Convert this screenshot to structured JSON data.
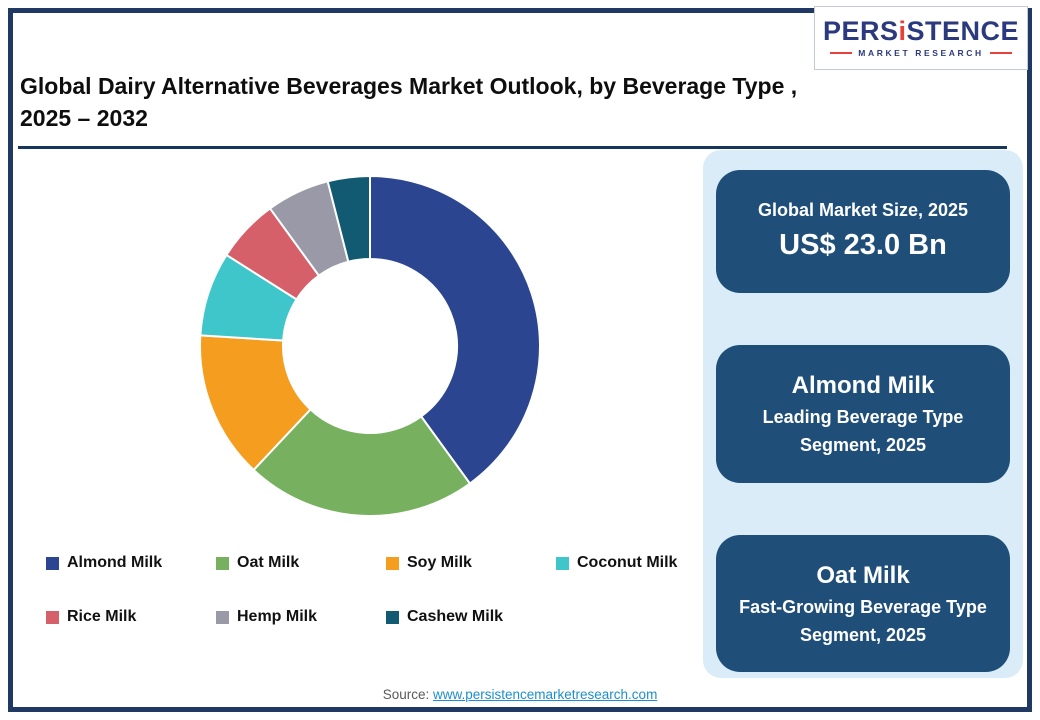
{
  "page": {
    "title": "Global Dairy Alternative Beverages Market Outlook, by Beverage Type ,\n2025 – 2032",
    "source_label": "Source:",
    "source_link": "www.persistencemarketresearch.com"
  },
  "logo": {
    "brand_pre": "PERS",
    "brand_i": "i",
    "brand_post": "STENCE",
    "tagline": "MARKET RESEARCH"
  },
  "chart_data": {
    "type": "pie",
    "donut": true,
    "legend_position": "bottom",
    "unit": "% share (estimated from arc angles)",
    "segments": [
      {
        "label": "Almond Milk",
        "value": 40,
        "color": "#2B4590"
      },
      {
        "label": "Oat Milk",
        "value": 22,
        "color": "#77B05E"
      },
      {
        "label": "Soy Milk",
        "value": 14,
        "color": "#F59D1F"
      },
      {
        "label": "Coconut Milk",
        "value": 8,
        "color": "#3FC6CB"
      },
      {
        "label": "Rice Milk",
        "value": 6,
        "color": "#D5606A"
      },
      {
        "label": "Hemp Milk",
        "value": 6,
        "color": "#9A99A7"
      },
      {
        "label": "Cashew Milk",
        "value": 4,
        "color": "#115A72"
      }
    ]
  },
  "side_panel": {
    "cards": [
      {
        "line1": "Global Market Size, 2025",
        "line2": "US$ 23.0 Bn"
      },
      {
        "line1": "Almond Milk",
        "line2": "Leading Beverage Type Segment, 2025"
      },
      {
        "line1": "Oat Milk",
        "line2": "Fast-Growing Beverage Type Segment, 2025"
      }
    ]
  }
}
